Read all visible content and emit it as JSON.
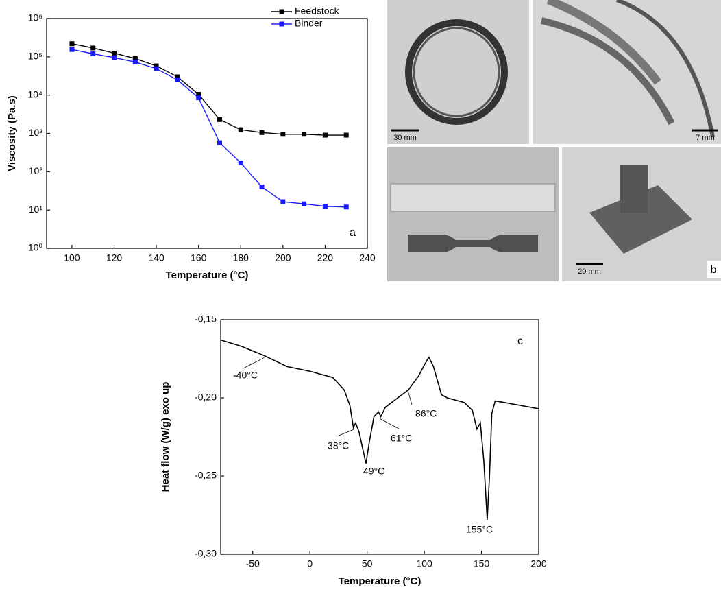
{
  "chart_data": [
    {
      "type": "line",
      "y_label": "Viscosity (Pa.s)",
      "x_label": "Temperature (°C)",
      "panel_label": "a",
      "log_y": true,
      "legend": "top-right",
      "x": [
        100,
        110,
        120,
        130,
        140,
        150,
        160,
        170,
        180,
        190,
        200,
        210,
        220,
        230
      ],
      "series": [
        {
          "name": "Feedstock",
          "color": "#000000",
          "values": [
            220000,
            170000,
            125000,
            90000,
            58000,
            30000,
            10500,
            2300,
            1250,
            1050,
            950,
            950,
            900,
            900
          ]
        },
        {
          "name": "Binder",
          "color": "#1a1aff",
          "values": [
            155000,
            120000,
            95000,
            73000,
            49000,
            25000,
            8500,
            570,
            170,
            40,
            16.5,
            14.5,
            12.5,
            12
          ]
        }
      ],
      "xlim": [
        88,
        240
      ],
      "xticks": [
        100,
        120,
        140,
        160,
        180,
        200,
        220,
        240
      ],
      "ylim": [
        1,
        1000000
      ],
      "yticks": [
        {
          "value": 1,
          "label": "10⁰"
        },
        {
          "value": 10,
          "label": "10¹"
        },
        {
          "value": 100,
          "label": "10²"
        },
        {
          "value": 1000,
          "label": "10³"
        },
        {
          "value": 10000,
          "label": "10⁴"
        },
        {
          "value": 100000,
          "label": "10⁵"
        },
        {
          "value": 1000000,
          "label": "10⁶"
        }
      ]
    },
    {
      "type": "line",
      "y_label": "Heat flow (W/g) exo up",
      "x_label": "Temperature (°C)",
      "panel_label": "c",
      "x": [
        -78,
        -60,
        -40,
        -20,
        0,
        20,
        30,
        35,
        38,
        40,
        43,
        46,
        49,
        52,
        56,
        60,
        62,
        66,
        75,
        86,
        95,
        100,
        104,
        108,
        115,
        120,
        135,
        142,
        146,
        149,
        152,
        155,
        157,
        159,
        162,
        170,
        185,
        200
      ],
      "series": [
        {
          "color": "#000000",
          "values": [
            -0.163,
            -0.167,
            -0.173,
            -0.18,
            -0.183,
            -0.187,
            -0.195,
            -0.205,
            -0.219,
            -0.216,
            -0.222,
            -0.232,
            -0.242,
            -0.228,
            -0.212,
            -0.209,
            -0.212,
            -0.206,
            -0.201,
            -0.195,
            -0.186,
            -0.179,
            -0.174,
            -0.18,
            -0.198,
            -0.2,
            -0.203,
            -0.208,
            -0.22,
            -0.216,
            -0.24,
            -0.278,
            -0.25,
            -0.21,
            -0.202,
            -0.203,
            -0.205,
            -0.207
          ]
        }
      ],
      "annotations": [
        "-40°C",
        "38°C",
        "49°C",
        "61°C",
        "86°C",
        "155°C"
      ],
      "xlim": [
        -78,
        200
      ],
      "xticks": [
        -50,
        0,
        50,
        100,
        150,
        200
      ],
      "ylim": [
        -0.3,
        -0.15
      ],
      "yticks": [
        {
          "value": -0.3,
          "label": "-0,30"
        },
        {
          "value": -0.25,
          "label": "-0,25"
        },
        {
          "value": -0.2,
          "label": "-0,20"
        },
        {
          "value": -0.15,
          "label": "-0,15"
        }
      ]
    }
  ],
  "photos": {
    "scale_bars": [
      "30 mm",
      "7 mm",
      "20 mm"
    ],
    "panel_label": "b"
  }
}
